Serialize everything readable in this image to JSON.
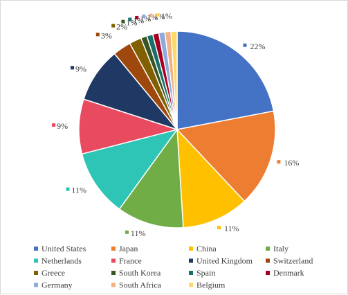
{
  "chart_data": {
    "type": "pie",
    "title": "",
    "start_angle_deg": 0,
    "direction": "clockwise",
    "legend_position": "bottom",
    "slices": [
      {
        "label": "United States",
        "value": 22,
        "display": "22%",
        "color": "#4472C4"
      },
      {
        "label": "Japan",
        "value": 16,
        "display": "16%",
        "color": "#ED7D31"
      },
      {
        "label": "China",
        "value": 11,
        "display": "11%",
        "color": "#FFC000"
      },
      {
        "label": "Italy",
        "value": 11,
        "display": "11%",
        "color": "#70AD47"
      },
      {
        "label": "Netherlands",
        "value": 11,
        "display": "11%",
        "color": "#2EC4B6"
      },
      {
        "label": "France",
        "value": 9,
        "display": "9%",
        "color": "#E84A5F"
      },
      {
        "label": "United Kingdom",
        "value": 9,
        "display": "9%",
        "color": "#203864"
      },
      {
        "label": "Switzerland",
        "value": 3,
        "display": "3%",
        "color": "#9E480E"
      },
      {
        "label": "Greece",
        "value": 2,
        "display": "2%",
        "color": "#806000"
      },
      {
        "label": "South Korea",
        "value": 1,
        "display": "1%",
        "color": "#375623"
      },
      {
        "label": "Spain",
        "value": 1,
        "display": "1%",
        "color": "#1B6F6A"
      },
      {
        "label": "Denmark",
        "value": 1,
        "display": "1%",
        "color": "#A50021"
      },
      {
        "label": "Germany",
        "value": 1,
        "display": "1%",
        "color": "#8EA9DB"
      },
      {
        "label": "South Africa",
        "value": 1,
        "display": "1%",
        "color": "#F4B183"
      },
      {
        "label": "Belgium",
        "value": 1,
        "display": "1%",
        "color": "#FFD966"
      }
    ]
  }
}
